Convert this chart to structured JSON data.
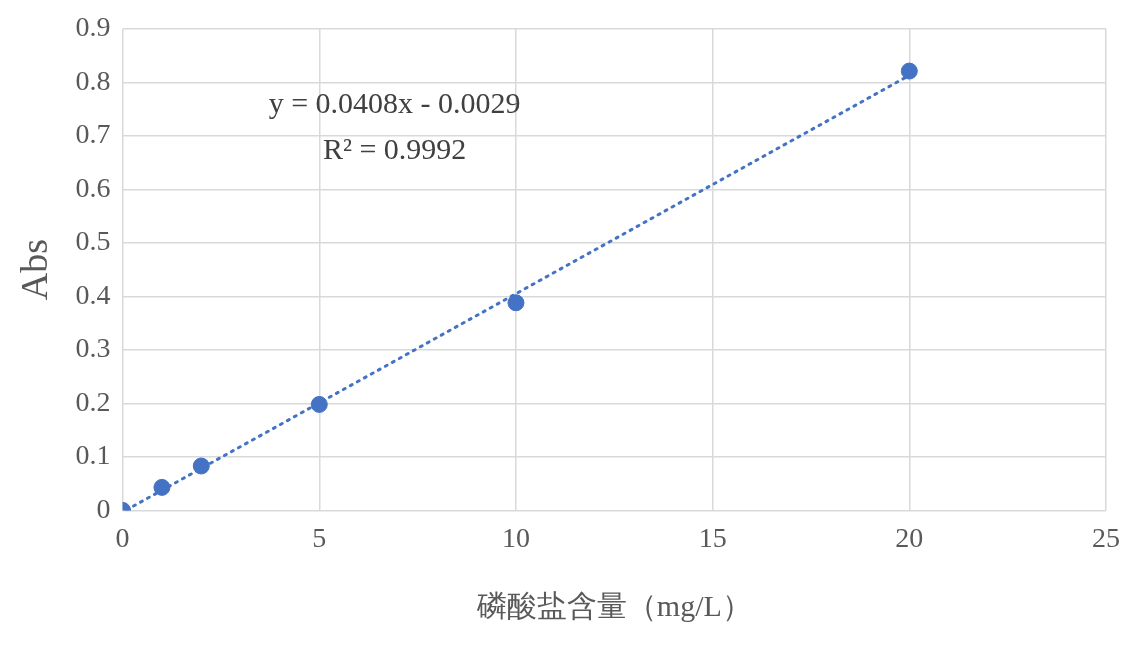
{
  "chart_data": {
    "type": "scatter",
    "xlabel": "磷酸盐含量（mg/L）",
    "ylabel": "Abs",
    "series": [
      {
        "color": "#4472c4",
        "x": [
          0,
          1,
          2,
          5,
          10,
          20
        ],
        "values": [
          0,
          0.043,
          0.083,
          0.198,
          0.388,
          0.821
        ],
        "marker": "circle"
      },
      {
        "type": "line",
        "color": "#4472c4",
        "x": [
          0.1,
          20
        ],
        "values": [
          0.001,
          0.813
        ],
        "marker": "none",
        "line_style": "dotted"
      }
    ],
    "annotations": [
      "y = 0.0408x - 0.0029",
      "R² = 0.9992"
    ],
    "xlim": [
      0,
      25
    ],
    "xticks": [
      0,
      5,
      10,
      15,
      20,
      25
    ],
    "ylim": [
      0,
      0.9
    ],
    "yticks": [
      0,
      0.1,
      0.2,
      0.3,
      0.4,
      0.5,
      0.6,
      0.7,
      0.8,
      0.9
    ],
    "grid": true,
    "legend": false
  }
}
